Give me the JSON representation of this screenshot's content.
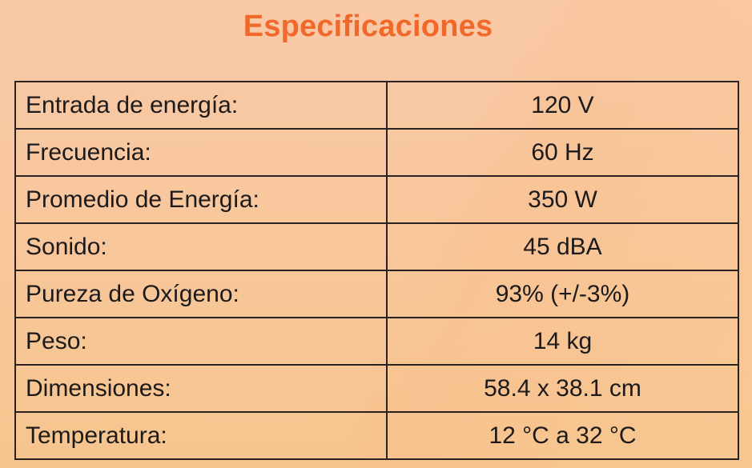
{
  "title": "Especificaciones",
  "specs": [
    {
      "label": "Entrada de energía:",
      "value": "120 V"
    },
    {
      "label": "Frecuencia:",
      "value": "60 Hz"
    },
    {
      "label": "Promedio de Energía:",
      "value": "350 W"
    },
    {
      "label": "Sonido:",
      "value": "45 dBA"
    },
    {
      "label": "Pureza de Oxígeno:",
      "value": "93% (+/-3%)"
    },
    {
      "label": "Peso:",
      "value": "14 kg"
    },
    {
      "label": "Dimensiones:",
      "value": "58.4 x 38.1 cm"
    },
    {
      "label": "Temperatura:",
      "value": "12 °C a 32 °C"
    }
  ]
}
